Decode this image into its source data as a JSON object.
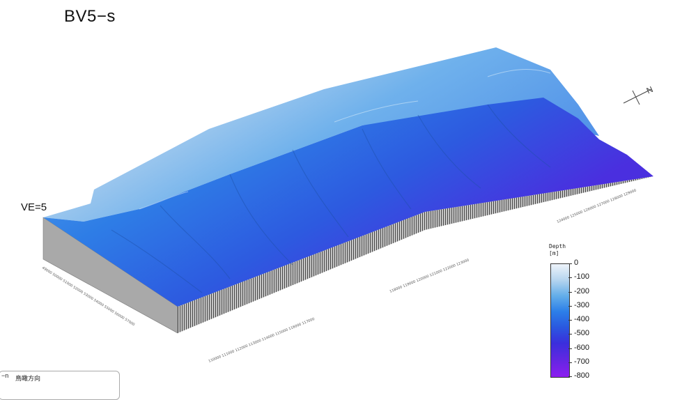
{
  "title": "BV5−s",
  "vertical_exaggeration": "VE=5",
  "legend": {
    "title_line1": "Depth",
    "title_line2": "[m]",
    "labels": [
      "0",
      "-100",
      "-200",
      "-300",
      "-400",
      "-500",
      "-600",
      "-700",
      "-800"
    ]
  },
  "corner": {
    "left_label": "−n",
    "text": "鳥瞰方向"
  },
  "compass_icon": "north-arrow-icon"
}
